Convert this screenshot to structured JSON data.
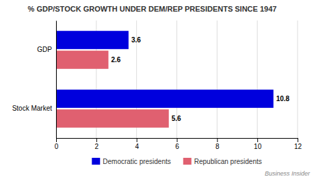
{
  "chart_data": {
    "type": "bar",
    "orientation": "horizontal",
    "title": "% GDP/STOCK GROWTH UNDER DEM/REP PRESIDENTS SINCE 1947",
    "categories": [
      "GDP",
      "Stock Market"
    ],
    "series": [
      {
        "name": "Democratic presidents",
        "color": "#0000DD",
        "values": [
          3.6,
          10.8
        ]
      },
      {
        "name": "Republican presidents",
        "color": "#E06070",
        "values": [
          2.6,
          5.6
        ]
      }
    ],
    "xlim": [
      0,
      12
    ],
    "xticks": [
      0,
      2,
      4,
      6,
      8,
      10,
      12
    ],
    "grid": true,
    "data_labels": true,
    "legend": "bottom",
    "annotations": [
      "Business Insider"
    ]
  }
}
